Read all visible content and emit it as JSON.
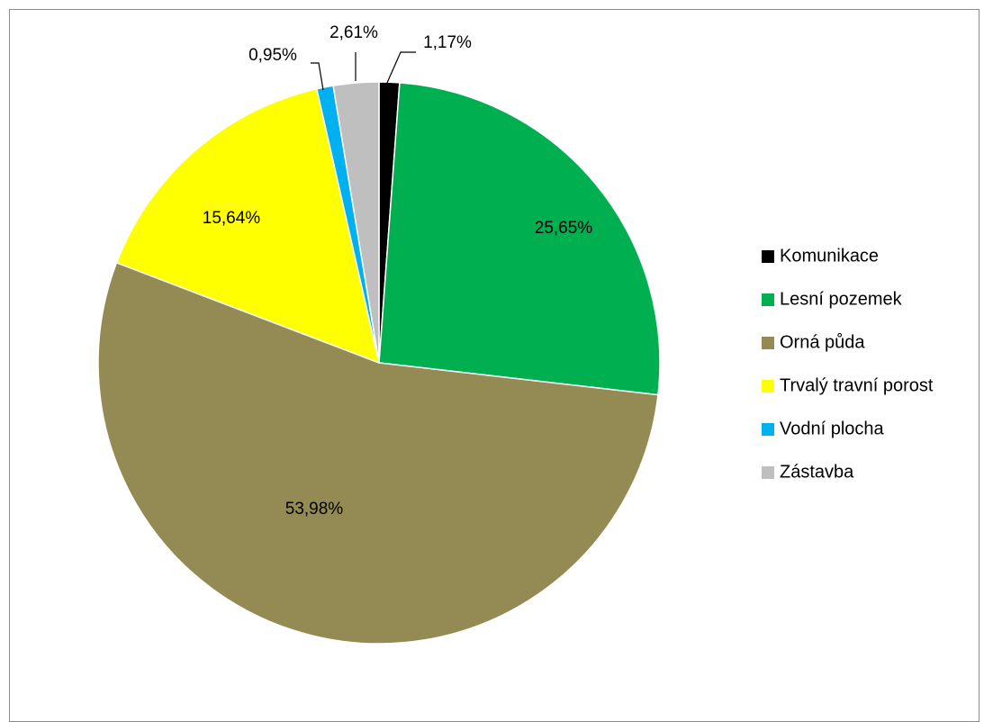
{
  "chart_data": {
    "type": "pie",
    "title": "",
    "start_angle_deg": 0,
    "direction": "clockwise",
    "legend_position": "right",
    "slices": [
      {
        "label": "Komunikace",
        "value": 1.17,
        "display": "1,17%",
        "color": "#000000"
      },
      {
        "label": "Lesní pozemek",
        "value": 25.65,
        "display": "25,65%",
        "color": "#00b050"
      },
      {
        "label": "Orná půda",
        "value": 53.98,
        "display": "53,98%",
        "color": "#948a54"
      },
      {
        "label": "Trvalý travní porost",
        "value": 15.64,
        "display": "15,64%",
        "color": "#ffff00"
      },
      {
        "label": "Vodní plocha",
        "value": 0.95,
        "display": "0,95%",
        "color": "#00b0f0"
      },
      {
        "label": "Zástavba",
        "value": 2.61,
        "display": "2,61%",
        "color": "#bfbfbf"
      }
    ]
  }
}
